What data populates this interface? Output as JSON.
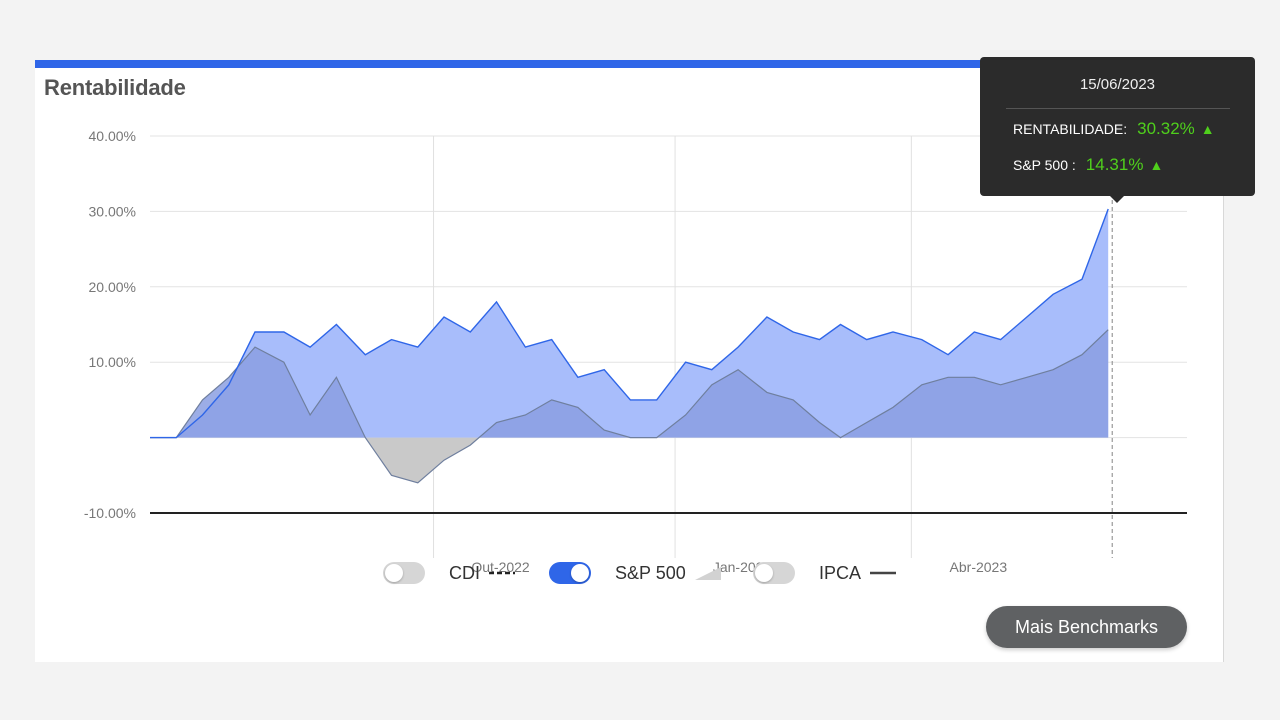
{
  "card": {
    "title": "Rentabilidade"
  },
  "tooltip": {
    "date": "15/06/2023",
    "rows": [
      {
        "label": "RENTABILIDADE:",
        "value": "30.32%",
        "arrow": "▲"
      },
      {
        "label": "S&P 500 :",
        "value": "14.31%",
        "arrow": "▲"
      }
    ]
  },
  "legend": {
    "items": [
      {
        "label": "CDI",
        "enabled": false,
        "marker": "dashed-line"
      },
      {
        "label": "S&P 500",
        "enabled": true,
        "marker": "area-wedge"
      },
      {
        "label": "IPCA",
        "enabled": false,
        "marker": "solid-line"
      }
    ]
  },
  "buttons": {
    "benchmarks": "Mais Benchmarks"
  },
  "colors": {
    "accent": "#2f66e8",
    "portfolio_fill": "#a8bdfb",
    "portfolio_line": "#2f66e8",
    "sp500_fill": "#8b9fe2",
    "sp500_negative": "#c9c9c9",
    "positive": "#4fcf1c"
  },
  "chart_data": {
    "type": "area",
    "title": "Rentabilidade",
    "ylim": [
      -10,
      40
    ],
    "yticks": [
      "40.00%",
      "30.00%",
      "20.00%",
      "10.00%",
      "-10.00%"
    ],
    "ytick_values": [
      40,
      30,
      20,
      10,
      -10
    ],
    "xticks": [
      "Out-2022",
      "Jan-2023",
      "Abr-2023"
    ],
    "xlim": [
      "2022-06-15",
      "2023-07-15"
    ],
    "xtick_dates": [
      "2022-10-01",
      "2023-01-01",
      "2023-04-01"
    ],
    "cursor_date": "2023-06-15",
    "grid": true,
    "series": [
      {
        "name": "Rentabilidade",
        "dates": [
          "2022-06-15",
          "2022-06-25",
          "2022-07-05",
          "2022-07-15",
          "2022-07-25",
          "2022-08-05",
          "2022-08-15",
          "2022-08-25",
          "2022-09-05",
          "2022-09-15",
          "2022-09-25",
          "2022-10-05",
          "2022-10-15",
          "2022-10-25",
          "2022-11-05",
          "2022-11-15",
          "2022-11-25",
          "2022-12-05",
          "2022-12-15",
          "2022-12-25",
          "2023-01-05",
          "2023-01-15",
          "2023-01-25",
          "2023-02-05",
          "2023-02-15",
          "2023-02-25",
          "2023-03-05",
          "2023-03-15",
          "2023-03-25",
          "2023-04-05",
          "2023-04-15",
          "2023-04-25",
          "2023-05-05",
          "2023-05-15",
          "2023-05-25",
          "2023-06-05",
          "2023-06-15"
        ],
        "values": [
          0,
          0,
          3,
          7,
          14,
          14,
          12,
          15,
          11,
          13,
          12,
          16,
          14,
          18,
          12,
          13,
          8,
          9,
          5,
          5,
          10,
          9,
          12,
          16,
          14,
          13,
          15,
          13,
          14,
          13,
          11,
          14,
          13,
          16,
          19,
          21,
          30.32
        ]
      },
      {
        "name": "S&P 500",
        "dates": [
          "2022-06-15",
          "2022-06-25",
          "2022-07-05",
          "2022-07-15",
          "2022-07-25",
          "2022-08-05",
          "2022-08-15",
          "2022-08-25",
          "2022-09-05",
          "2022-09-15",
          "2022-09-25",
          "2022-10-05",
          "2022-10-15",
          "2022-10-25",
          "2022-11-05",
          "2022-11-15",
          "2022-11-25",
          "2022-12-05",
          "2022-12-15",
          "2022-12-25",
          "2023-01-05",
          "2023-01-15",
          "2023-01-25",
          "2023-02-05",
          "2023-02-15",
          "2023-02-25",
          "2023-03-05",
          "2023-03-15",
          "2023-03-25",
          "2023-04-05",
          "2023-04-15",
          "2023-04-25",
          "2023-05-05",
          "2023-05-15",
          "2023-05-25",
          "2023-06-05",
          "2023-06-15"
        ],
        "values": [
          0,
          0,
          5,
          8,
          12,
          10,
          3,
          8,
          0,
          -5,
          -6,
          -3,
          -1,
          2,
          3,
          5,
          4,
          1,
          0,
          0,
          3,
          7,
          9,
          6,
          5,
          2,
          0,
          2,
          4,
          7,
          8,
          8,
          7,
          8,
          9,
          11,
          14.31
        ]
      }
    ]
  }
}
